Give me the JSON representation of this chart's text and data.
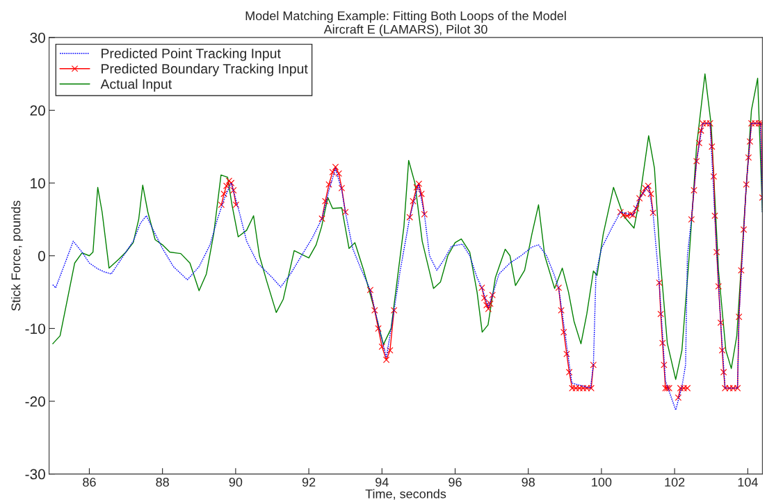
{
  "chart_data": {
    "type": "line",
    "title": "Model Matching Example: Fitting Both Loops of the Model\nAircraft E (LAMARS), Pilot 30",
    "xlabel": "Time, seconds",
    "ylabel": "Stick Force, pounds",
    "xlim": [
      84.9,
      104.4
    ],
    "ylim": [
      -30,
      30
    ],
    "xticks": [
      86,
      88,
      90,
      92,
      94,
      96,
      98,
      100,
      102,
      104
    ],
    "yticks": [
      -30,
      -20,
      -10,
      0,
      10,
      20,
      30
    ],
    "grid": false,
    "legend": "top left",
    "series": [
      {
        "name": "Predicted Point Tracking Input",
        "color": "#0000ff",
        "line_style": "dotted",
        "marker": "none",
        "x": [
          85.0,
          85.08,
          85.3,
          85.56,
          85.8,
          86.0,
          86.23,
          86.4,
          86.6,
          86.8,
          87.0,
          87.2,
          87.4,
          87.56,
          87.75,
          88.0,
          88.3,
          88.68,
          89.0,
          89.3,
          89.5,
          89.7,
          89.88,
          90.1,
          90.3,
          90.6,
          91.0,
          91.23,
          91.5,
          91.8,
          92.1,
          92.36,
          92.55,
          92.73,
          92.9,
          93.0,
          93.2,
          93.4,
          93.68,
          93.9,
          94.12,
          94.33,
          94.5,
          94.76,
          95.0,
          95.16,
          95.3,
          95.5,
          95.7,
          95.9,
          96.2,
          96.4,
          96.6,
          96.73,
          96.91,
          97.02,
          97.2,
          97.5,
          97.8,
          98.1,
          98.28,
          98.5,
          98.7,
          98.83,
          99.0,
          99.19,
          99.7,
          99.78,
          99.85,
          100.0,
          100.3,
          100.52,
          100.86,
          101.04,
          101.28,
          101.41,
          101.58,
          101.75,
          102.03,
          102.2,
          102.3,
          102.35,
          102.46,
          102.6,
          102.77,
          102.97,
          103.1,
          103.26,
          103.38,
          103.72,
          103.76,
          103.96,
          104.1,
          104.35,
          104.4
        ],
        "values": [
          -4.0,
          -4.4,
          -1.5,
          2.0,
          0.5,
          -1.0,
          -1.8,
          -2.2,
          -2.5,
          -1.0,
          0.5,
          2.0,
          4.5,
          5.5,
          3.5,
          1.0,
          -1.5,
          -3.3,
          -1.5,
          1.5,
          5.0,
          8.0,
          10.0,
          6.0,
          2.0,
          -1.0,
          -3.0,
          -4.3,
          -2.5,
          0.0,
          2.5,
          5.1,
          9.0,
          12.0,
          9.0,
          6.0,
          1.0,
          -1.5,
          -4.7,
          -9.5,
          -14.0,
          -7.5,
          -2.0,
          5.3,
          9.8,
          5.7,
          0.0,
          -2.0,
          -0.5,
          1.3,
          1.6,
          0.0,
          -3.0,
          -4.4,
          -7.1,
          -5.4,
          -2.5,
          -1.0,
          0.0,
          1.2,
          1.5,
          0.0,
          -2.5,
          -4.4,
          -10.5,
          -17.5,
          -18.2,
          -15.0,
          -2.5,
          1.0,
          4.0,
          6.0,
          5.6,
          7.9,
          9.6,
          5.9,
          -3.7,
          -17.2,
          -21.2,
          -18.0,
          -15.0,
          0.0,
          5.0,
          13.0,
          18.2,
          18.2,
          5.5,
          -9.2,
          -18.2,
          -18.2,
          -8.4,
          9.8,
          18.2,
          18.2,
          6.0
        ]
      },
      {
        "name": "Predicted Boundary Tracking Input",
        "color": "#ff0000",
        "line_style": "solid",
        "marker": "cross",
        "x": [
          89.61,
          89.68,
          89.75,
          89.82,
          89.88,
          89.94,
          90.01,
          91.0,
          92.36,
          92.45,
          92.55,
          92.65,
          92.73,
          92.82,
          92.9,
          93.0,
          93.3,
          93.68,
          93.8,
          93.9,
          94.0,
          94.12,
          94.22,
          94.33,
          94.5,
          94.76,
          94.85,
          94.95,
          95.01,
          95.08,
          95.16,
          96.0,
          96.73,
          96.8,
          96.86,
          96.91,
          96.96,
          97.02,
          98.0,
          98.83,
          98.9,
          98.97,
          99.05,
          99.12,
          99.2,
          99.3,
          99.4,
          99.5,
          99.6,
          99.72,
          99.78,
          100.2,
          100.52,
          100.6,
          100.7,
          100.8,
          100.86,
          100.95,
          101.04,
          101.13,
          101.2,
          101.28,
          101.35,
          101.41,
          101.5,
          101.58,
          101.62,
          101.67,
          101.71,
          101.75,
          101.8,
          101.85,
          101.95,
          102.1,
          102.16,
          102.25,
          102.35,
          102.4,
          102.46,
          102.53,
          102.6,
          102.67,
          102.72,
          102.77,
          102.87,
          102.97,
          103.02,
          103.07,
          103.1,
          103.15,
          103.2,
          103.26,
          103.3,
          103.34,
          103.38,
          103.5,
          103.6,
          103.72,
          103.76,
          103.82,
          103.89,
          103.96,
          104.02,
          104.06,
          104.1,
          104.2,
          104.3,
          104.36,
          104.4
        ],
        "values": [
          7.0,
          8.5,
          9.6,
          10.3,
          10.0,
          9.0,
          7.0,
          null,
          5.1,
          7.5,
          9.8,
          11.5,
          12.2,
          11.3,
          9.3,
          6.0,
          null,
          -4.7,
          -7.5,
          -10.0,
          -12.5,
          -14.3,
          -13.0,
          -7.5,
          null,
          5.3,
          7.5,
          9.4,
          9.9,
          8.5,
          5.7,
          null,
          -4.4,
          -5.8,
          -6.8,
          -7.3,
          -6.6,
          -5.4,
          null,
          -4.4,
          -7.5,
          -10.5,
          -13.5,
          -16.0,
          -18.2,
          -18.2,
          -18.2,
          -18.2,
          -18.2,
          -18.2,
          -15.0,
          null,
          6.0,
          5.6,
          5.5,
          5.7,
          5.6,
          6.5,
          7.9,
          8.6,
          9.3,
          9.6,
          8.5,
          5.9,
          null,
          -3.7,
          -8.0,
          -12.0,
          -15.0,
          -18.2,
          -18.2,
          -18.2,
          null,
          -19.5,
          -18.2,
          -18.2,
          -18.2,
          null,
          5.0,
          9.0,
          13.0,
          15.5,
          17.2,
          18.2,
          18.2,
          18.2,
          15.0,
          10.9,
          5.5,
          0.5,
          -4.2,
          -9.2,
          -13.0,
          -16.0,
          -18.2,
          -18.2,
          -18.2,
          -18.2,
          -8.4,
          -2.0,
          3.6,
          9.8,
          13.5,
          15.7,
          18.2,
          18.2,
          18.2,
          18.2,
          8.0
        ]
      },
      {
        "name": "Actual Input",
        "color": "#008000",
        "line_style": "solid",
        "marker": "none",
        "x": [
          85.0,
          85.2,
          85.4,
          85.6,
          85.8,
          86.0,
          86.1,
          86.23,
          86.35,
          86.54,
          86.8,
          87.0,
          87.2,
          87.35,
          87.46,
          87.6,
          87.8,
          88.0,
          88.2,
          88.5,
          88.75,
          89.0,
          89.2,
          89.4,
          89.6,
          89.78,
          89.9,
          90.07,
          90.3,
          90.49,
          90.65,
          90.85,
          91.11,
          91.3,
          91.6,
          91.8,
          92.0,
          92.2,
          92.35,
          92.52,
          92.65,
          92.9,
          93.1,
          93.26,
          93.5,
          93.8,
          94.04,
          94.25,
          94.45,
          94.6,
          94.73,
          94.9,
          95.1,
          95.41,
          95.6,
          95.8,
          96.0,
          96.17,
          96.4,
          96.6,
          96.74,
          96.9,
          97.1,
          97.37,
          97.5,
          97.65,
          97.9,
          98.1,
          98.28,
          98.45,
          98.72,
          98.93,
          99.1,
          99.25,
          99.44,
          99.6,
          99.78,
          99.88,
          100.05,
          100.33,
          100.6,
          100.89,
          101.05,
          101.29,
          101.45,
          101.6,
          101.8,
          102.03,
          102.2,
          102.4,
          102.6,
          102.83,
          103.0,
          103.2,
          103.4,
          103.55,
          103.7,
          103.9,
          104.1,
          104.27,
          104.4
        ],
        "values": [
          -12.1,
          -11.0,
          -6.0,
          -1.0,
          0.4,
          0.0,
          0.5,
          9.4,
          6.0,
          -1.7,
          -0.5,
          0.5,
          1.8,
          5.0,
          9.7,
          6.0,
          2.2,
          1.5,
          0.5,
          0.3,
          -1.0,
          -4.8,
          -2.5,
          3.0,
          11.1,
          10.8,
          7.0,
          2.6,
          3.5,
          5.5,
          0.0,
          -3.5,
          -7.8,
          -6.0,
          0.7,
          0.2,
          -0.3,
          1.5,
          4.0,
          8.0,
          6.5,
          6.6,
          1.0,
          1.8,
          -2.0,
          -7.5,
          -12.2,
          -10.0,
          -2.0,
          4.0,
          13.1,
          10.0,
          2.0,
          -4.5,
          -3.6,
          0.0,
          1.8,
          2.3,
          0.5,
          -5.0,
          -10.5,
          -9.5,
          -3.0,
          0.9,
          0.0,
          -4.1,
          -2.0,
          3.0,
          7.0,
          0.0,
          -4.5,
          -1.7,
          -5.0,
          -9.0,
          -12.1,
          -8.0,
          -2.1,
          -2.7,
          3.0,
          9.4,
          5.5,
          3.8,
          8.0,
          16.5,
          12.0,
          0.0,
          -12.0,
          -17.0,
          -13.0,
          0.0,
          15.0,
          25.0,
          18.0,
          -2.0,
          -13.0,
          -15.5,
          -11.0,
          5.0,
          20.0,
          24.4,
          6.0
        ]
      }
    ]
  }
}
